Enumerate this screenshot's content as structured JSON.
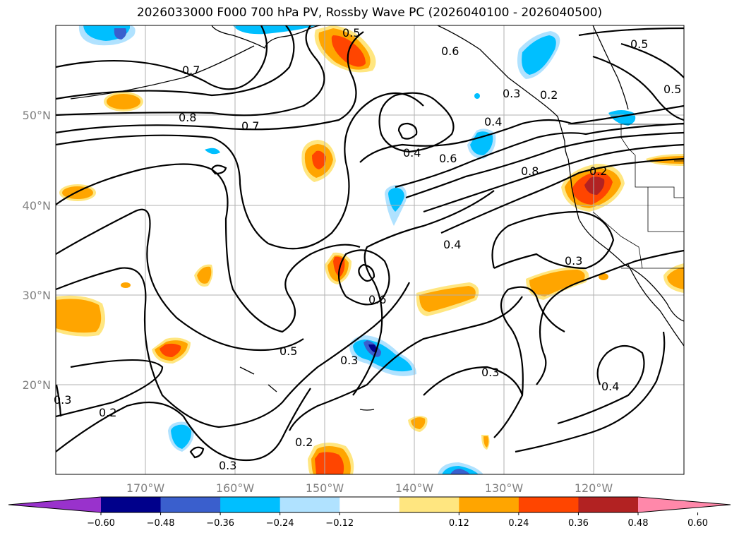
{
  "title": "2026033000 F000 700 hPa PV, Rossby Wave PC (2026040100 - 2026040500)",
  "lat_ticks": [
    "50°N",
    "40°N",
    "30°N",
    "20°N"
  ],
  "lon_ticks": [
    "170°W",
    "160°W",
    "150°W",
    "140°W",
    "130°W",
    "120°W"
  ],
  "colorbar": {
    "labels": [
      "−0.60",
      "−0.48",
      "−0.36",
      "−0.24",
      "−0.12",
      "0.12",
      "0.24",
      "0.36",
      "0.48",
      "0.60"
    ],
    "colors": [
      "#9932CC",
      "#00008B",
      "#3A5FCD",
      "#00BFFF",
      "#B0E2FF",
      "#FFFFFF",
      "#FFE680",
      "#FFA500",
      "#FF4500",
      "#B22222",
      "#FF88AA"
    ]
  },
  "contour_labels": [
    "0.5",
    "0.6",
    "0.5",
    "0.5",
    "0.7",
    "0.8",
    "0.7",
    "0.3",
    "0.2",
    "0.4",
    "0.6",
    "0.4",
    "0.8",
    "0.2",
    "0.4",
    "0.3",
    "0.6",
    "0.5",
    "0.3",
    "0.3",
    "0.4",
    "0.3",
    "0.2",
    "0.2",
    "0.3"
  ]
}
